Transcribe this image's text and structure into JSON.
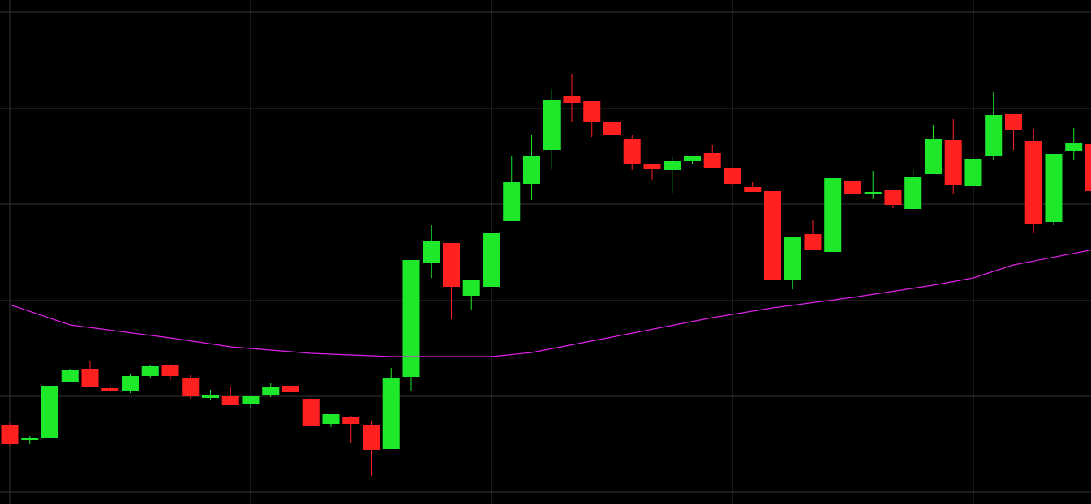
{
  "chart_data": {
    "type": "candlestick",
    "x": [
      0,
      1,
      2,
      3,
      4,
      5,
      6,
      7,
      8,
      9,
      10,
      11,
      12,
      13,
      14,
      15,
      16,
      17,
      18,
      19,
      20,
      21,
      22,
      23,
      24,
      25,
      26,
      27,
      28,
      29,
      30,
      31,
      32,
      33,
      34,
      35,
      36,
      37,
      38,
      39,
      40,
      41,
      42,
      43,
      44,
      45,
      46,
      47,
      48,
      49,
      50,
      51,
      52,
      53,
      54
    ],
    "open": [
      83,
      64,
      67,
      136,
      151,
      128,
      124,
      143,
      156,
      140,
      116,
      118,
      109,
      119,
      131,
      115,
      84,
      92,
      83,
      53,
      142,
      282,
      307,
      242,
      253,
      334,
      380,
      422,
      488,
      482,
      456,
      436,
      405,
      397,
      408,
      418,
      400,
      376,
      371,
      262,
      318,
      296,
      384,
      368,
      372,
      349,
      392,
      434,
      378,
      414,
      466,
      433,
      333,
      421,
      429
    ],
    "high": [
      85,
      69,
      131,
      152,
      162,
      134,
      145,
      157,
      158,
      144,
      126,
      129,
      118,
      134,
      131,
      118,
      96,
      94,
      88,
      153,
      286,
      329,
      307,
      261,
      319,
      415,
      441,
      497,
      516,
      482,
      471,
      440,
      405,
      413,
      415,
      428,
      400,
      382,
      371,
      314,
      336,
      387,
      387,
      396,
      372,
      397,
      453,
      460,
      411,
      493,
      466,
      448,
      417,
      449,
      429
    ],
    "low": [
      57,
      59,
      67,
      136,
      130,
      122,
      122,
      141,
      138,
      115,
      113,
      107,
      104,
      117,
      123,
      81,
      80,
      60,
      20,
      53,
      124,
      264,
      213,
      225,
      253,
      334,
      360,
      398,
      457,
      438,
      440,
      397,
      385,
      369,
      404,
      400,
      378,
      370,
      261,
      250,
      298,
      296,
      317,
      362,
      350,
      347,
      392,
      367,
      378,
      409,
      422,
      320,
      329,
      410,
      371
    ],
    "close": [
      59,
      66,
      131,
      150,
      130,
      124,
      143,
      155,
      143,
      118,
      119,
      107,
      118,
      130,
      123,
      81,
      96,
      84,
      52,
      140,
      286,
      309,
      253,
      261,
      319,
      382,
      414,
      483,
      480,
      457,
      440,
      404,
      398,
      408,
      415,
      400,
      380,
      370,
      261,
      314,
      298,
      387,
      367,
      370,
      354,
      389,
      435,
      379,
      411,
      465,
      447,
      331,
      417,
      430,
      371
    ],
    "up_color": "#1ee82a",
    "down_color": "#ff2020",
    "overlay": {
      "type": "line",
      "color": "#e020e8",
      "x": [
        0,
        3,
        8,
        11,
        15,
        19,
        24,
        26,
        30,
        35,
        38,
        42,
        46,
        48,
        50,
        54
      ],
      "values": [
        231,
        206,
        190,
        179,
        171,
        167,
        167,
        172,
        191,
        215,
        227,
        240,
        255,
        264,
        280,
        299
      ]
    },
    "xlim": [
      -0.485,
      53.86
    ],
    "ylim": [
      -15,
      607
    ],
    "xticks": [
      0,
      12,
      24,
      36,
      48
    ],
    "yticks": [
      0,
      118,
      236,
      355,
      473,
      592
    ],
    "grid": true
  }
}
